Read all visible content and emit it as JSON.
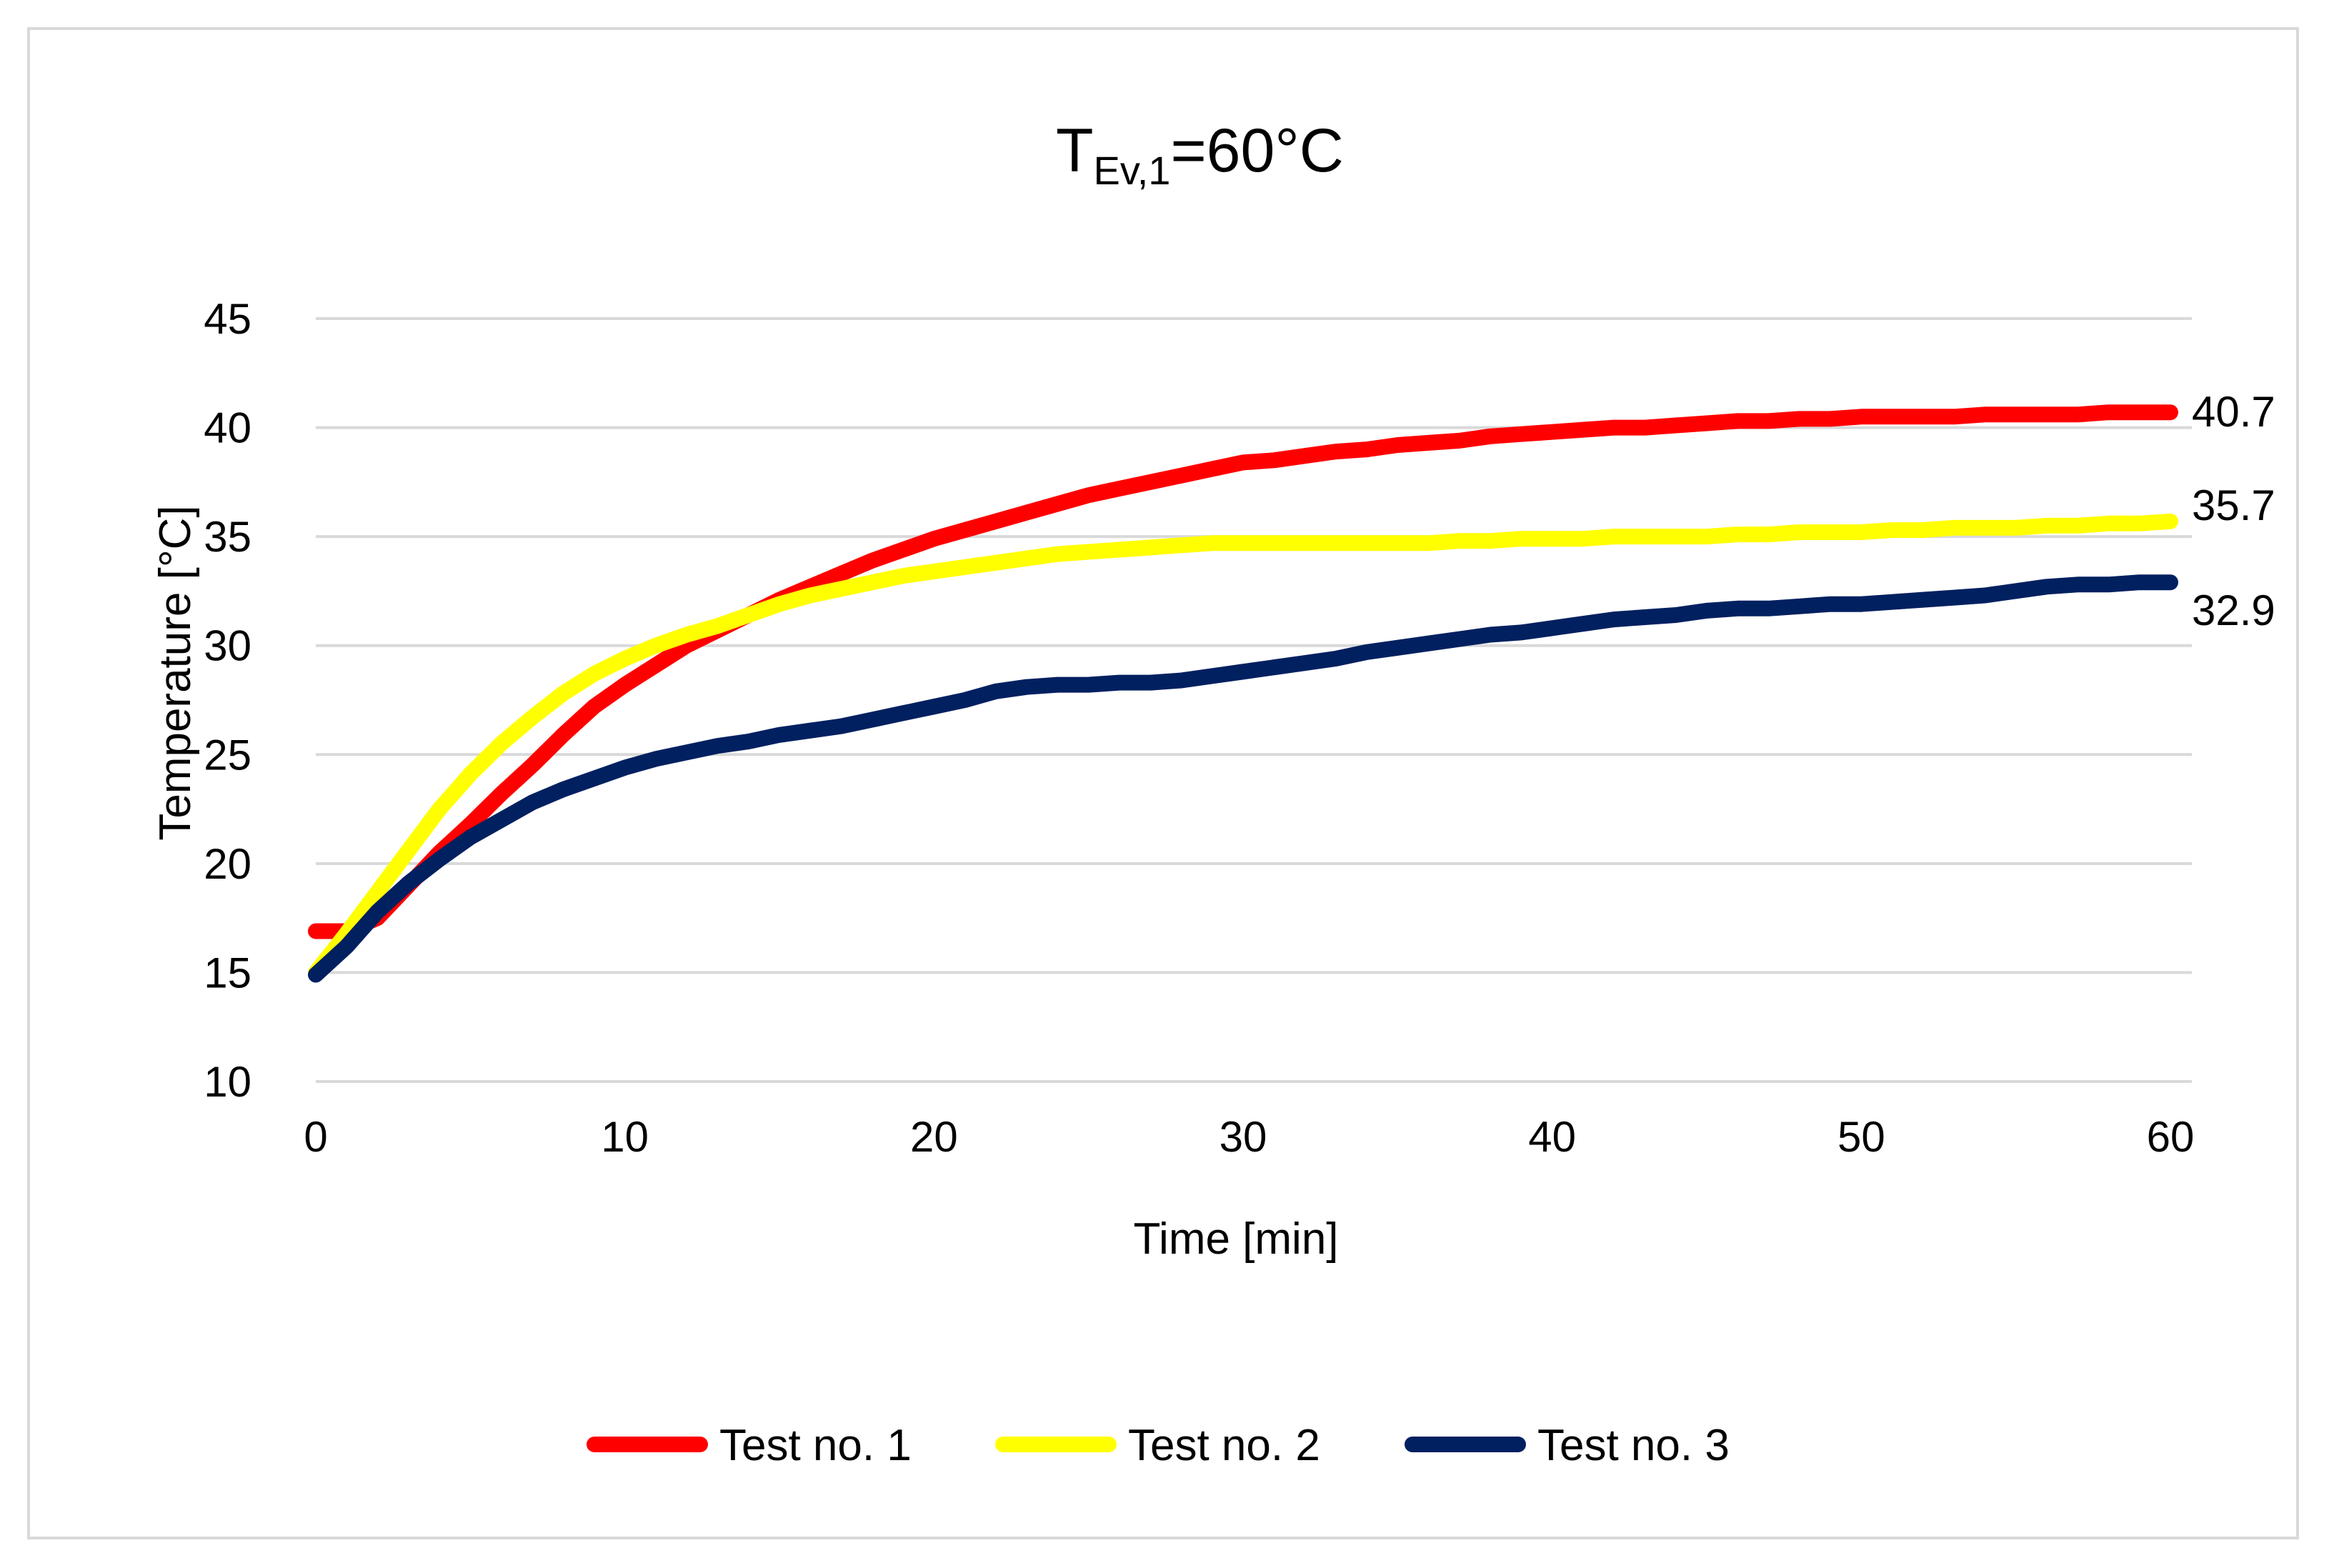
{
  "chart_data": {
    "type": "line",
    "title": {
      "main": "T",
      "subscript": "Ev,1",
      "suffix": "=60°C"
    },
    "xlabel": "Time [min]",
    "ylabel": "Temperature [°C]",
    "xlim": [
      0,
      60
    ],
    "ylim": [
      10,
      45
    ],
    "xticks": [
      0,
      10,
      20,
      30,
      40,
      50,
      60
    ],
    "yticks": [
      10,
      15,
      20,
      25,
      30,
      35,
      40,
      45
    ],
    "grid": "horizontal",
    "legend_position": "bottom",
    "series": [
      {
        "name": "Test no. 1",
        "color": "#ff0000",
        "end_label": "40.7",
        "x": [
          0,
          1,
          2,
          3,
          4,
          5,
          6,
          7,
          8,
          9,
          10,
          11,
          12,
          13,
          14,
          15,
          16,
          17,
          18,
          19,
          20,
          21,
          22,
          23,
          24,
          25,
          26,
          27,
          28,
          29,
          30,
          31,
          32,
          33,
          34,
          35,
          36,
          37,
          38,
          39,
          40,
          41,
          42,
          43,
          44,
          45,
          46,
          47,
          48,
          49,
          50,
          51,
          52,
          53,
          54,
          55,
          56,
          57,
          58,
          59,
          60
        ],
        "y": [
          16.9,
          16.9,
          17.5,
          19.0,
          20.5,
          21.8,
          23.2,
          24.5,
          25.9,
          27.2,
          28.2,
          29.1,
          30.0,
          30.7,
          31.4,
          32.1,
          32.7,
          33.3,
          33.9,
          34.4,
          34.9,
          35.3,
          35.7,
          36.1,
          36.5,
          36.9,
          37.2,
          37.5,
          37.8,
          38.1,
          38.4,
          38.5,
          38.7,
          38.9,
          39.0,
          39.2,
          39.3,
          39.4,
          39.6,
          39.7,
          39.8,
          39.9,
          40.0,
          40.0,
          40.1,
          40.2,
          40.3,
          40.3,
          40.4,
          40.4,
          40.5,
          40.5,
          40.5,
          40.5,
          40.6,
          40.6,
          40.6,
          40.6,
          40.7,
          40.7,
          40.7
        ]
      },
      {
        "name": "Test no. 2",
        "color": "#ffff00",
        "end_label": "35.7",
        "x": [
          0,
          1,
          2,
          3,
          4,
          5,
          6,
          7,
          8,
          9,
          10,
          11,
          12,
          13,
          14,
          15,
          16,
          17,
          18,
          19,
          20,
          21,
          22,
          23,
          24,
          25,
          26,
          27,
          28,
          29,
          30,
          31,
          32,
          33,
          34,
          35,
          36,
          37,
          38,
          39,
          40,
          41,
          42,
          43,
          44,
          45,
          46,
          47,
          48,
          49,
          50,
          51,
          52,
          53,
          54,
          55,
          56,
          57,
          58,
          59,
          60
        ],
        "y": [
          15.0,
          16.8,
          18.7,
          20.6,
          22.5,
          24.1,
          25.5,
          26.7,
          27.8,
          28.7,
          29.4,
          30.0,
          30.5,
          30.9,
          31.4,
          31.9,
          32.3,
          32.6,
          32.9,
          33.2,
          33.4,
          33.6,
          33.8,
          34.0,
          34.2,
          34.3,
          34.4,
          34.5,
          34.6,
          34.7,
          34.7,
          34.7,
          34.7,
          34.7,
          34.7,
          34.7,
          34.7,
          34.8,
          34.8,
          34.9,
          34.9,
          34.9,
          35.0,
          35.0,
          35.0,
          35.0,
          35.1,
          35.1,
          35.2,
          35.2,
          35.2,
          35.3,
          35.3,
          35.4,
          35.4,
          35.4,
          35.5,
          35.5,
          35.6,
          35.6,
          35.7
        ]
      },
      {
        "name": "Test no. 3",
        "color": "#002060",
        "end_label": "32.9",
        "x": [
          0,
          1,
          2,
          3,
          4,
          5,
          6,
          7,
          8,
          9,
          10,
          11,
          12,
          13,
          14,
          15,
          16,
          17,
          18,
          19,
          20,
          21,
          22,
          23,
          24,
          25,
          26,
          27,
          28,
          29,
          30,
          31,
          32,
          33,
          34,
          35,
          36,
          37,
          38,
          39,
          40,
          41,
          42,
          43,
          44,
          45,
          46,
          47,
          48,
          49,
          50,
          51,
          52,
          53,
          54,
          55,
          56,
          57,
          58,
          59,
          60
        ],
        "y": [
          14.9,
          16.2,
          17.8,
          19.1,
          20.2,
          21.2,
          22.0,
          22.8,
          23.4,
          23.9,
          24.4,
          24.8,
          25.1,
          25.4,
          25.6,
          25.9,
          26.1,
          26.3,
          26.6,
          26.9,
          27.2,
          27.5,
          27.9,
          28.1,
          28.2,
          28.2,
          28.3,
          28.3,
          28.4,
          28.6,
          28.8,
          29.0,
          29.2,
          29.4,
          29.7,
          29.9,
          30.1,
          30.3,
          30.5,
          30.6,
          30.8,
          31.0,
          31.2,
          31.3,
          31.4,
          31.6,
          31.7,
          31.7,
          31.8,
          31.9,
          31.9,
          32.0,
          32.1,
          32.2,
          32.3,
          32.5,
          32.7,
          32.8,
          32.8,
          32.9,
          32.9
        ]
      }
    ]
  }
}
